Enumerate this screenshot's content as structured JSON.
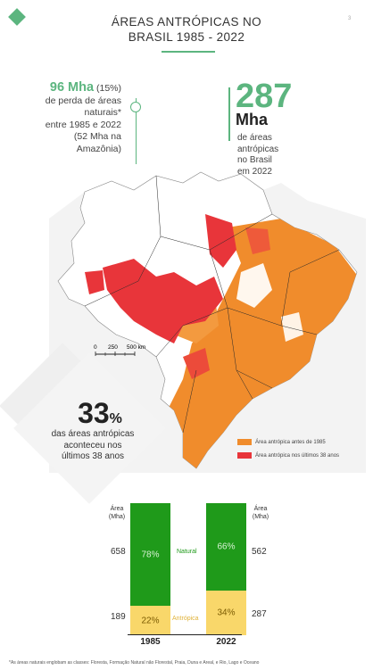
{
  "header": {
    "title_line1": "ÁREAS ANTRÓPICAS NO",
    "title_line2": "BRASIL 1985 - 2022",
    "page_number": "3"
  },
  "loss": {
    "value": "96 Mha",
    "percent": "(15%)",
    "line1": "de perda de áreas",
    "line2": "naturais*",
    "line3": "entre 1985 e 2022",
    "line4": "(52 Mha na",
    "line5": "Amazônia)"
  },
  "total": {
    "value": "287",
    "unit": "Mha",
    "line1": "de áreas",
    "line2": "antrópicas",
    "line3": "no Brasil",
    "line4": "em 2022"
  },
  "map": {
    "scale_0": "0",
    "scale_250": "250",
    "scale_500": "500 km",
    "colors": {
      "before_1985": "#f08c2c",
      "last_38": "#e8353a",
      "border": "#2a2a2a"
    }
  },
  "recent": {
    "value": "33",
    "unit": "%",
    "line1": "das áreas antrópicas",
    "line2": "aconteceu nos",
    "line3": "últimos 38 anos"
  },
  "legend": [
    {
      "label": "Área antrópica antes de 1985",
      "color": "#f08c2c"
    },
    {
      "label": "Área antrópica nos últimos 38 anos",
      "color": "#e8353a"
    }
  ],
  "bars": {
    "left_head_1": "Área",
    "left_head_2": "(Mha)",
    "right_head_1": "Área",
    "right_head_2": "(Mha)",
    "natural_label": "Natural",
    "anthropic_label": "Antrópica",
    "colors": {
      "natural": "#1f9a1a",
      "anthropic": "#f9d76a"
    },
    "y1985": {
      "year": "1985",
      "natural_pct": "78%",
      "anthropic_pct": "22%",
      "natural_mha": "658",
      "anthropic_mha": "189",
      "natural_frac": 0.78
    },
    "y2022": {
      "year": "2022",
      "natural_pct": "66%",
      "anthropic_pct": "34%",
      "natural_mha": "562",
      "anthropic_mha": "287",
      "natural_frac": 0.66
    }
  },
  "footnote": "*As áreas naturais englobam as classes: Floresta, Formação Natural não Florestal, Praia, Duna e Areal, e Rio, Lago e Oceano"
}
